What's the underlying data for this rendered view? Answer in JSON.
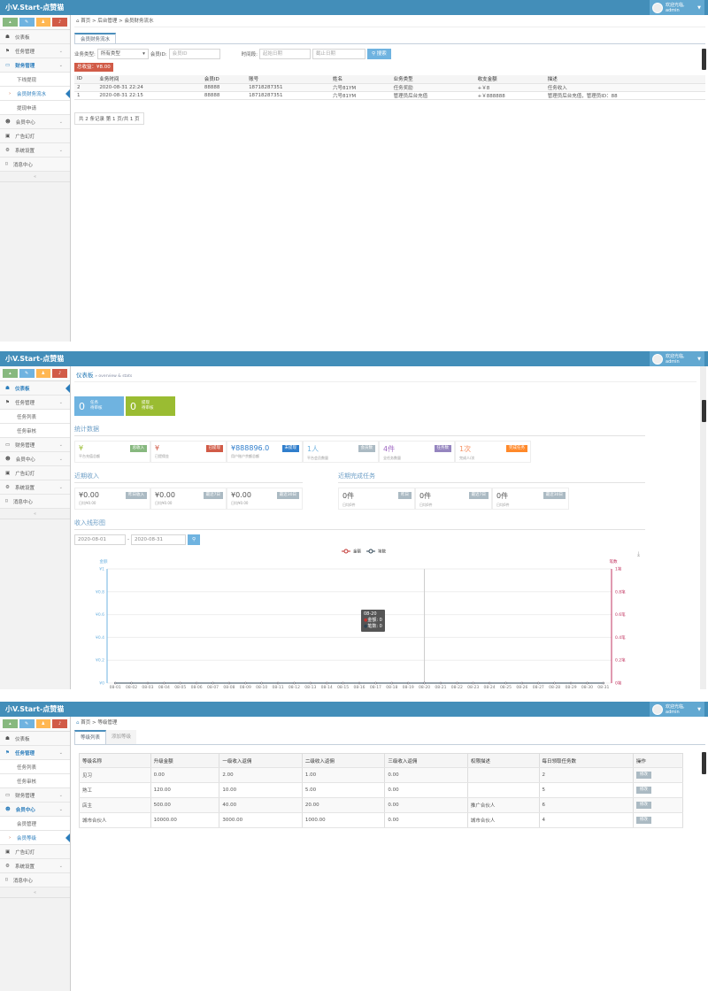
{
  "app": {
    "logo": "小V.Start-点赞猫",
    "user_greeting": "欢迎光临,",
    "user_name": "admin"
  },
  "colors": {
    "header": "#438eb9",
    "shortcut_green": "#87b87f",
    "shortcut_blue": "#6fb3e0",
    "shortcut_orange": "#ffb752",
    "shortcut_red": "#d15b47",
    "accent": "#2b7dbc"
  },
  "shortcuts": [
    {
      "icon": "signal-icon"
    },
    {
      "icon": "pencil-icon"
    },
    {
      "icon": "users-icon"
    },
    {
      "icon": "bell-icon"
    }
  ],
  "panel1": {
    "sidebar": [
      {
        "label": "仪表板",
        "icon": "dashboard-icon"
      },
      {
        "label": "任务管理",
        "icon": "flag-icon",
        "chev": true
      },
      {
        "label": "财务管理",
        "icon": "wallet-icon",
        "chev": true,
        "active": true
      },
      {
        "label": "下线提现",
        "sub": true
      },
      {
        "label": "会员财务流水",
        "sub": true,
        "current": true
      },
      {
        "label": "提现申请",
        "sub": true
      },
      {
        "label": "会员中心",
        "icon": "user-icon",
        "chev": true
      },
      {
        "label": "广告幻灯",
        "icon": "picture-icon"
      },
      {
        "label": "系统设置",
        "icon": "cog-icon",
        "chev": true
      },
      {
        "label": "消息中心",
        "icon": "bookmark-icon"
      }
    ],
    "breadcrumb": "首页 > 后台管理 > 会员财务流水",
    "tab": "会员财务流水",
    "filter": {
      "type_label": "业务类型:",
      "type_value": "所有类型",
      "member_label": "会员ID:",
      "member_placeholder": "会员ID",
      "time_label": "时间段:",
      "start_placeholder": "起始日期",
      "end_placeholder": "截止日期",
      "search": "搜索"
    },
    "total": "总收益：¥8.00",
    "columns": [
      "ID",
      "业务时间",
      "会员ID",
      "账号",
      "姓名",
      "业务类型",
      "收支金额",
      "描述"
    ],
    "rows": [
      [
        "2",
        "2020-08-31 22:24",
        "88888",
        "18718287351",
        "六号81YM",
        "任务奖励",
        "+￥8",
        "任务收入"
      ],
      [
        "1",
        "2020-08-31 22:15",
        "88888",
        "18718287351",
        "六号81YM",
        "管理员后台充值",
        "+￥888888",
        "管理员后台充值，管理员ID：88"
      ]
    ],
    "pager": "共 2 条记录 第 1 页/共 1 页"
  },
  "panel2": {
    "sidebar": [
      {
        "label": "仪表板",
        "icon": "dashboard-icon",
        "active": true,
        "current": true
      },
      {
        "label": "任务管理",
        "icon": "flag-icon",
        "chev": true
      },
      {
        "label": "任务列表",
        "sub": true
      },
      {
        "label": "任务审核",
        "sub": true
      },
      {
        "label": "财务管理",
        "icon": "wallet-icon",
        "chev": true
      },
      {
        "label": "会员中心",
        "icon": "user-icon",
        "chev": true
      },
      {
        "label": "广告幻灯",
        "icon": "picture-icon"
      },
      {
        "label": "系统设置",
        "icon": "cog-icon",
        "chev": true
      },
      {
        "label": "消息中心",
        "icon": "bookmark-icon"
      }
    ],
    "title": "仪表板",
    "subtitle": "» overview & stats",
    "tiles": [
      {
        "n": "0",
        "l1": "任务",
        "l2": "待审核",
        "color": "#6fb3e0"
      },
      {
        "n": "0",
        "l1": "提现",
        "l2": "待审核",
        "color": "#9abc32"
      }
    ],
    "stats_title": "统计数据",
    "stats": [
      {
        "v": "¥",
        "s": "平台充值总额",
        "tag": "总收入",
        "color": "#87b87f",
        "vcolor": "#9abc32"
      },
      {
        "v": "¥",
        "s": "已提佣金",
        "tag": "已提现",
        "color": "#d15b47",
        "vcolor": "#d15b47"
      },
      {
        "v": "¥888896.0",
        "s": "用户账户余额总额",
        "tag": "未提现",
        "color": "#307ecc",
        "vcolor": "#307ecc"
      },
      {
        "v": "1人",
        "s": "平台会员数量",
        "tag": "会员数",
        "color": "#abbac3",
        "vcolor": "#6fb3e0"
      },
      {
        "v": "4件",
        "s": "全任务数量",
        "tag": "任务数",
        "color": "#9585bf",
        "vcolor": "#a069c3"
      },
      {
        "v": "1次",
        "s": "完成人/次",
        "tag": "完成任务",
        "color": "#ff892a",
        "vcolor": "#f79263"
      }
    ],
    "income_title": "近期收入",
    "income": [
      {
        "v": "¥0.00",
        "s": "日均¥0.00",
        "tag": "昨日收入"
      },
      {
        "v": "¥0.00",
        "s": "日均¥0.00",
        "tag": "最近7日"
      },
      {
        "v": "¥0.00",
        "s": "日均¥0.00",
        "tag": "最近30日"
      }
    ],
    "tasks_title": "近期完成任务",
    "tasks": [
      {
        "v": "0件",
        "s": "日均0件",
        "tag": "昨日"
      },
      {
        "v": "0件",
        "s": "日均0件",
        "tag": "最近7日"
      },
      {
        "v": "0件",
        "s": "日均0件",
        "tag": "最近30日"
      }
    ],
    "chart_title": "收入线形图",
    "date_start": "2020-08-01",
    "date_sep": "-",
    "date_end": "2020-08-31"
  },
  "chart_data": {
    "type": "line",
    "x": [
      "08-01",
      "08-02",
      "08-03",
      "08-04",
      "08-05",
      "08-06",
      "08-07",
      "08-08",
      "08-09",
      "08-10",
      "08-11",
      "08-12",
      "08-13",
      "08-14",
      "08-15",
      "08-16",
      "08-17",
      "08-18",
      "08-19",
      "08-20",
      "08-21",
      "08-22",
      "08-23",
      "08-24",
      "08-25",
      "08-26",
      "08-27",
      "08-28",
      "08-29",
      "08-30",
      "08-31"
    ],
    "series": [
      {
        "name": "金额",
        "axis": "left",
        "color": "#c23531",
        "values": [
          0,
          0,
          0,
          0,
          0,
          0,
          0,
          0,
          0,
          0,
          0,
          0,
          0,
          0,
          0,
          0,
          0,
          0,
          0,
          0,
          0,
          0,
          0,
          0,
          0,
          0,
          0,
          0,
          0,
          0,
          0
        ]
      },
      {
        "name": "笔数",
        "axis": "right",
        "color": "#2f4554",
        "values": [
          0,
          0,
          0,
          0,
          0,
          0,
          0,
          0,
          0,
          0,
          0,
          0,
          0,
          0,
          0,
          0,
          0,
          0,
          0,
          0,
          0,
          0,
          0,
          0,
          0,
          0,
          0,
          0,
          0,
          0,
          0
        ]
      }
    ],
    "ylabel": "金额",
    "y2label": "笔数",
    "yticks": [
      "¥0",
      "¥0.2",
      "¥0.4",
      "¥0.6",
      "¥0.8",
      "¥1"
    ],
    "y2ticks": [
      "0笔",
      "0.2笔",
      "0.4笔",
      "0.6笔",
      "0.8笔",
      "1笔"
    ],
    "ylim": [
      0,
      1
    ],
    "y2lim": [
      0,
      1
    ],
    "legend": "top-center",
    "grid": true,
    "tooltip": {
      "date": "08-20",
      "line1": "金额: 0",
      "line2": "笔数: 0"
    }
  },
  "panel3": {
    "sidebar": [
      {
        "label": "仪表板",
        "icon": "dashboard-icon"
      },
      {
        "label": "任务管理",
        "icon": "flag-icon",
        "chev": true,
        "active": true
      },
      {
        "label": "任务列表",
        "sub": true
      },
      {
        "label": "任务审核",
        "sub": true
      },
      {
        "label": "财务管理",
        "icon": "wallet-icon",
        "chev": true
      },
      {
        "label": "会员中心",
        "icon": "user-icon",
        "chev": true,
        "active": true
      },
      {
        "label": "会员管理",
        "sub": true
      },
      {
        "label": "会员等级",
        "sub": true,
        "current": true
      },
      {
        "label": "广告幻灯",
        "icon": "picture-icon"
      },
      {
        "label": "系统设置",
        "icon": "cog-icon",
        "chev": true
      },
      {
        "label": "消息中心",
        "icon": "bookmark-icon"
      }
    ],
    "breadcrumb": "首页 > 等级管理",
    "tabs": [
      "等级列表",
      "添加等级"
    ],
    "columns": [
      "等级名称",
      "升级金额",
      "一级收入返佣",
      "二级收入返佣",
      "三级收入返佣",
      "权限描述",
      "每日领取任务数",
      "操作"
    ],
    "rows": [
      [
        "见习",
        "0.00",
        "2.00",
        "1.00",
        "0.00",
        "",
        "2"
      ],
      [
        "熟工",
        "120.00",
        "10.00",
        "5.00",
        "0.00",
        "",
        "5"
      ],
      [
        "店主",
        "500.00",
        "40.00",
        "20.00",
        "0.00",
        "推广合伙人",
        "6"
      ],
      [
        "城市合伙人",
        "10000.00",
        "3000.00",
        "1000.00",
        "0.00",
        "城市合伙人",
        "4"
      ]
    ],
    "edit": "修改"
  }
}
